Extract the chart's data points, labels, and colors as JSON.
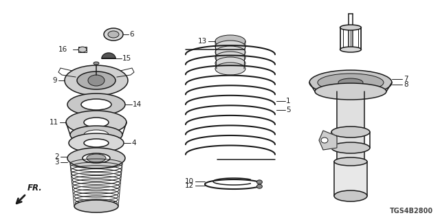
{
  "bg_color": "#ffffff",
  "line_color": "#1a1a1a",
  "fig_width": 6.4,
  "fig_height": 3.2,
  "dpi": 100,
  "diagram_code": "TGS4B2800"
}
